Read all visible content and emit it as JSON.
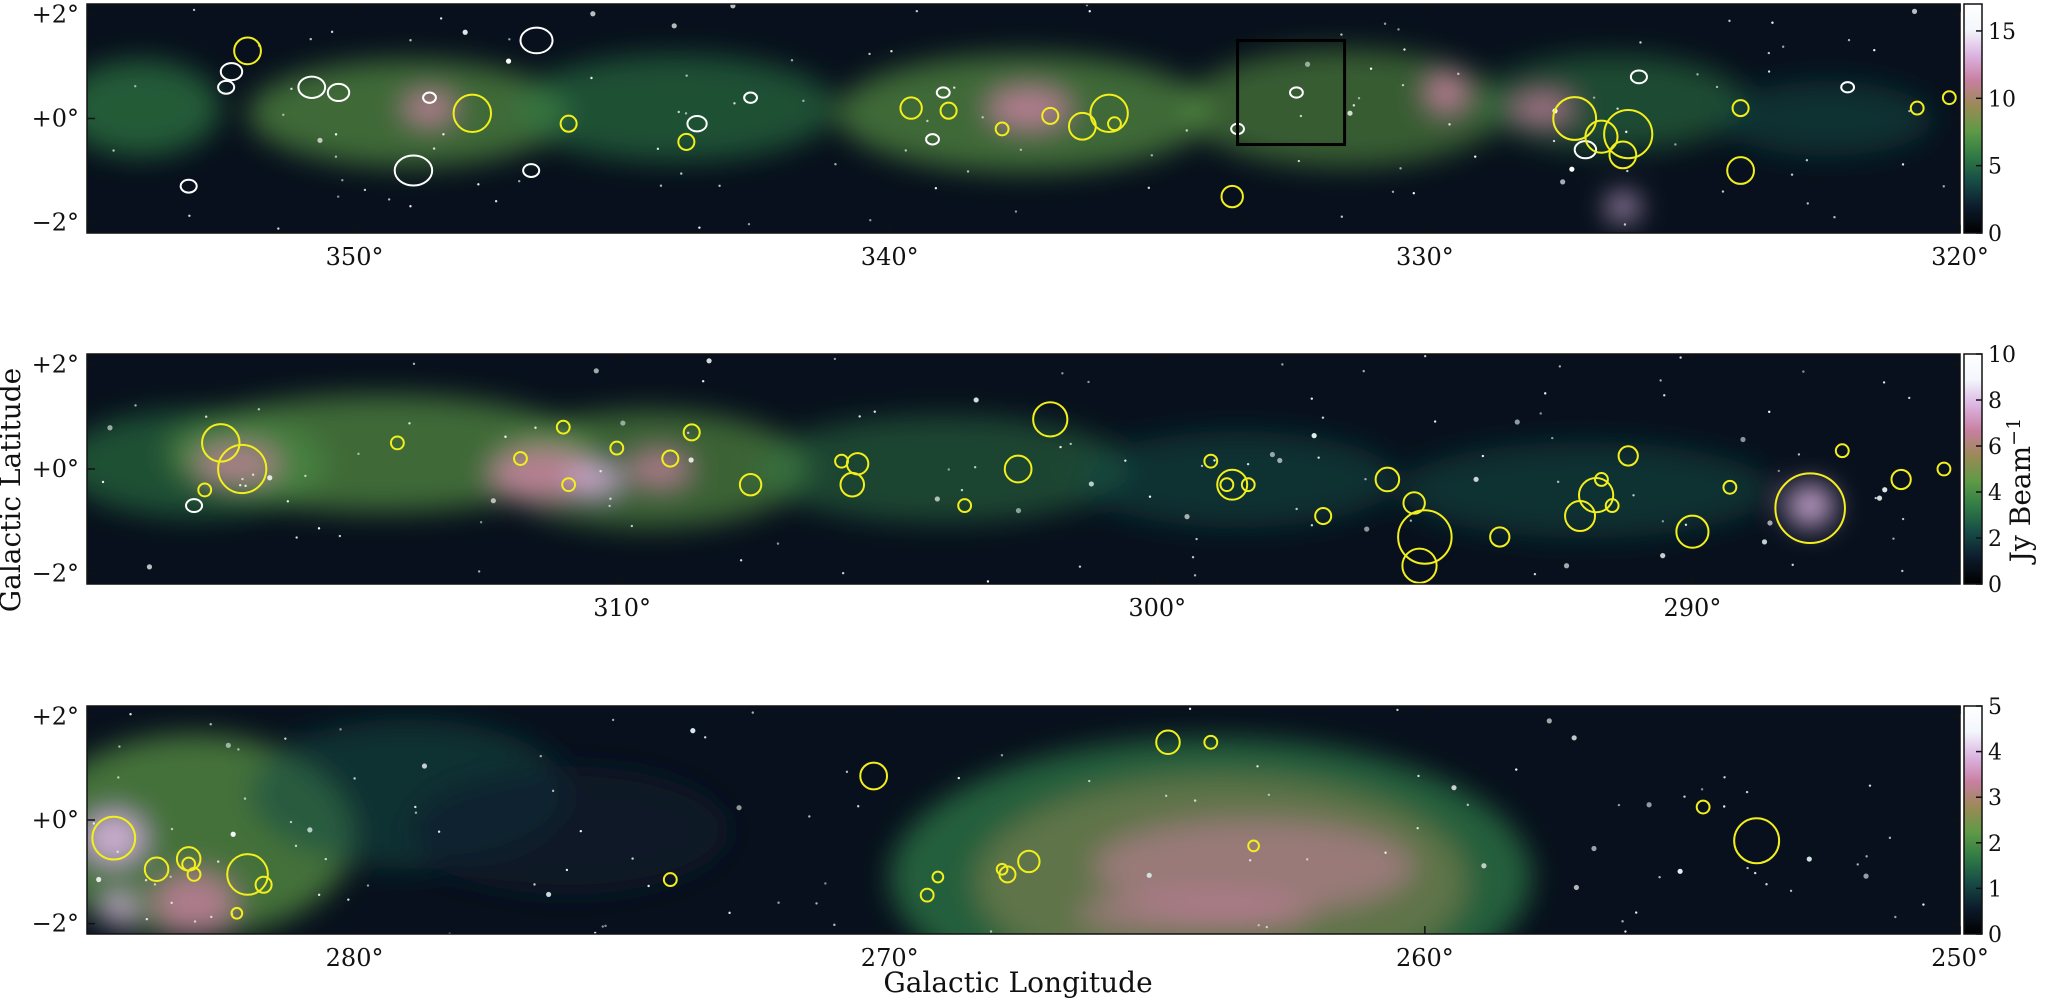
{
  "figure": {
    "xlabel": "Galactic Longitude",
    "ylabel": "Galactic Latitude",
    "colorbar_unit": "Jy Beam",
    "colorbar_unit_exp": "−1",
    "colormap": [
      "#000000",
      "#0c1a2c",
      "#164a46",
      "#2f7a45",
      "#5e9a46",
      "#9a8a55",
      "#c87fa0",
      "#dcb4e2",
      "#f3f7fb",
      "#ffffff"
    ],
    "marker_colors": {
      "sources": "#f2ef1d",
      "contours": "#ffffff",
      "box": "#000000"
    }
  },
  "panels": [
    {
      "id": "top",
      "lon_range": [
        355.0,
        320.0
      ],
      "lat_range": [
        -2.2,
        2.2
      ],
      "lon_ticks": [
        "350°",
        "340°",
        "330°",
        "320°"
      ],
      "lon_tick_values": [
        350,
        340,
        330,
        320
      ],
      "lat_ticks": [
        "+2°",
        "+0°",
        "−2°"
      ],
      "lat_tick_values": [
        2,
        0,
        -2
      ],
      "colorbar_max": 17,
      "colorbar_ticks": [
        "15",
        "10",
        "5",
        "0"
      ],
      "colorbar_tick_values": [
        15,
        10,
        5,
        0
      ],
      "sources": [
        {
          "l": 352.0,
          "b": 1.3,
          "r": 0.25
        },
        {
          "l": 347.8,
          "b": 0.1,
          "r": 0.35
        },
        {
          "l": 346.0,
          "b": -0.1,
          "r": 0.15
        },
        {
          "l": 343.8,
          "b": -0.45,
          "r": 0.15
        },
        {
          "l": 339.6,
          "b": 0.2,
          "r": 0.2
        },
        {
          "l": 338.9,
          "b": 0.15,
          "r": 0.15
        },
        {
          "l": 337.9,
          "b": -0.2,
          "r": 0.12
        },
        {
          "l": 337.0,
          "b": 0.05,
          "r": 0.15
        },
        {
          "l": 336.4,
          "b": -0.15,
          "r": 0.25
        },
        {
          "l": 335.9,
          "b": 0.1,
          "r": 0.35
        },
        {
          "l": 335.8,
          "b": -0.1,
          "r": 0.12
        },
        {
          "l": 333.6,
          "b": -1.5,
          "r": 0.2
        },
        {
          "l": 327.2,
          "b": 0.0,
          "r": 0.4
        },
        {
          "l": 326.7,
          "b": -0.35,
          "r": 0.3
        },
        {
          "l": 326.2,
          "b": -0.3,
          "r": 0.45
        },
        {
          "l": 326.3,
          "b": -0.7,
          "r": 0.25
        },
        {
          "l": 324.1,
          "b": 0.2,
          "r": 0.15
        },
        {
          "l": 324.1,
          "b": -1.0,
          "r": 0.25
        },
        {
          "l": 320.8,
          "b": 0.2,
          "r": 0.12
        },
        {
          "l": 320.2,
          "b": 0.4,
          "r": 0.12
        }
      ],
      "contours": [
        {
          "l": 352.3,
          "b": 0.9,
          "r": 0.2
        },
        {
          "l": 352.4,
          "b": 0.6,
          "r": 0.15
        },
        {
          "l": 350.8,
          "b": 0.6,
          "r": 0.25
        },
        {
          "l": 350.3,
          "b": 0.5,
          "r": 0.2
        },
        {
          "l": 348.9,
          "b": -1.0,
          "r": 0.35
        },
        {
          "l": 348.6,
          "b": 0.4,
          "r": 0.12
        },
        {
          "l": 346.6,
          "b": 1.5,
          "r": 0.3
        },
        {
          "l": 346.7,
          "b": -1.0,
          "r": 0.15
        },
        {
          "l": 343.6,
          "b": -0.1,
          "r": 0.18
        },
        {
          "l": 342.6,
          "b": 0.4,
          "r": 0.12
        },
        {
          "l": 339.0,
          "b": 0.5,
          "r": 0.12
        },
        {
          "l": 339.2,
          "b": -0.4,
          "r": 0.12
        },
        {
          "l": 332.4,
          "b": 0.5,
          "r": 0.12
        },
        {
          "l": 333.5,
          "b": -0.2,
          "r": 0.12
        },
        {
          "l": 327.0,
          "b": -0.6,
          "r": 0.2
        },
        {
          "l": 326.0,
          "b": 0.8,
          "r": 0.15
        },
        {
          "l": 322.1,
          "b": 0.6,
          "r": 0.12
        },
        {
          "l": 353.1,
          "b": -1.3,
          "r": 0.15
        }
      ],
      "box": {
        "l1": 333.5,
        "l2": 331.5,
        "b1": -0.5,
        "b2": 1.5
      },
      "emission": [
        {
          "l": 354.0,
          "b": 0.2,
          "rx": 1.5,
          "ry": 0.9,
          "c": "#2f7a45",
          "o": 0.7
        },
        {
          "l": 349.0,
          "b": 0.1,
          "rx": 3.0,
          "ry": 1.0,
          "c": "#5e9a46",
          "o": 0.65
        },
        {
          "l": 344.0,
          "b": 0.2,
          "rx": 3.0,
          "ry": 1.0,
          "c": "#2f7a45",
          "o": 0.6
        },
        {
          "l": 337.5,
          "b": 0.1,
          "rx": 3.5,
          "ry": 1.1,
          "c": "#5e9a46",
          "o": 0.65
        },
        {
          "l": 331.5,
          "b": 0.2,
          "rx": 3.0,
          "ry": 1.1,
          "c": "#5e9a46",
          "o": 0.55
        },
        {
          "l": 326.5,
          "b": 0.3,
          "rx": 2.5,
          "ry": 0.9,
          "c": "#2f7a45",
          "o": 0.55
        },
        {
          "l": 322.5,
          "b": 0.0,
          "rx": 2.0,
          "ry": 0.7,
          "c": "#164a46",
          "o": 0.55
        },
        {
          "l": 348.6,
          "b": 0.2,
          "rx": 0.5,
          "ry": 0.3,
          "c": "#c87fa0",
          "o": 0.9
        },
        {
          "l": 337.4,
          "b": 0.2,
          "rx": 0.8,
          "ry": 0.4,
          "c": "#c87fa0",
          "o": 0.85
        },
        {
          "l": 329.6,
          "b": 0.5,
          "rx": 0.4,
          "ry": 0.4,
          "c": "#c87fa0",
          "o": 0.9
        },
        {
          "l": 327.8,
          "b": 0.2,
          "rx": 0.6,
          "ry": 0.3,
          "c": "#c87fa0",
          "o": 0.8
        },
        {
          "l": 326.3,
          "b": -1.7,
          "rx": 0.3,
          "ry": 0.25,
          "c": "#dcb4e2",
          "o": 0.9
        }
      ]
    },
    {
      "id": "middle",
      "lon_range": [
        320.0,
        285.0
      ],
      "lat_range": [
        -2.2,
        2.2
      ],
      "lon_ticks": [
        "310°",
        "300°",
        "290°"
      ],
      "lon_tick_values": [
        310,
        300,
        290
      ],
      "lat_ticks": [
        "+2°",
        "+0°",
        "−2°"
      ],
      "lat_tick_values": [
        2,
        0,
        -2
      ],
      "colorbar_max": 10,
      "colorbar_ticks": [
        "10",
        "8",
        "6",
        "4",
        "2",
        "0"
      ],
      "colorbar_tick_values": [
        10,
        8,
        6,
        4,
        2,
        0
      ],
      "sources": [
        {
          "l": 317.5,
          "b": 0.5,
          "r": 0.35
        },
        {
          "l": 317.1,
          "b": 0.0,
          "r": 0.45
        },
        {
          "l": 317.8,
          "b": -0.4,
          "r": 0.12
        },
        {
          "l": 314.2,
          "b": 0.5,
          "r": 0.12
        },
        {
          "l": 311.9,
          "b": 0.2,
          "r": 0.12
        },
        {
          "l": 311.1,
          "b": 0.8,
          "r": 0.12
        },
        {
          "l": 311.0,
          "b": -0.3,
          "r": 0.12
        },
        {
          "l": 310.1,
          "b": 0.4,
          "r": 0.12
        },
        {
          "l": 309.1,
          "b": 0.2,
          "r": 0.15
        },
        {
          "l": 308.7,
          "b": 0.7,
          "r": 0.15
        },
        {
          "l": 307.6,
          "b": -0.3,
          "r": 0.2
        },
        {
          "l": 305.9,
          "b": 0.15,
          "r": 0.12
        },
        {
          "l": 305.6,
          "b": 0.1,
          "r": 0.2
        },
        {
          "l": 305.7,
          "b": -0.3,
          "r": 0.22
        },
        {
          "l": 303.6,
          "b": -0.7,
          "r": 0.12
        },
        {
          "l": 302.6,
          "b": 0.0,
          "r": 0.25
        },
        {
          "l": 302.0,
          "b": 0.95,
          "r": 0.32
        },
        {
          "l": 299.0,
          "b": 0.15,
          "r": 0.12
        },
        {
          "l": 298.6,
          "b": -0.3,
          "r": 0.28
        },
        {
          "l": 298.7,
          "b": -0.3,
          "r": 0.12
        },
        {
          "l": 298.3,
          "b": -0.3,
          "r": 0.12
        },
        {
          "l": 296.9,
          "b": -0.9,
          "r": 0.15
        },
        {
          "l": 295.7,
          "b": -0.2,
          "r": 0.22
        },
        {
          "l": 295.2,
          "b": -0.65,
          "r": 0.2
        },
        {
          "l": 295.0,
          "b": -1.3,
          "r": 0.5
        },
        {
          "l": 295.1,
          "b": -1.85,
          "r": 0.32
        },
        {
          "l": 293.6,
          "b": -1.3,
          "r": 0.18
        },
        {
          "l": 292.1,
          "b": -0.9,
          "r": 0.28
        },
        {
          "l": 291.8,
          "b": -0.5,
          "r": 0.32
        },
        {
          "l": 291.7,
          "b": -0.2,
          "r": 0.12
        },
        {
          "l": 291.5,
          "b": -0.7,
          "r": 0.12
        },
        {
          "l": 291.2,
          "b": 0.25,
          "r": 0.18
        },
        {
          "l": 290.0,
          "b": -1.2,
          "r": 0.3
        },
        {
          "l": 289.3,
          "b": -0.35,
          "r": 0.12
        },
        {
          "l": 287.8,
          "b": -0.75,
          "r": 0.65
        },
        {
          "l": 287.2,
          "b": 0.35,
          "r": 0.12
        },
        {
          "l": 286.1,
          "b": -0.2,
          "r": 0.18
        },
        {
          "l": 285.3,
          "b": 0.0,
          "r": 0.12
        }
      ],
      "contours": [
        {
          "l": 318.0,
          "b": -0.7,
          "r": 0.15
        }
      ],
      "emission": [
        {
          "l": 318.0,
          "b": 0.1,
          "rx": 2.5,
          "ry": 1.0,
          "c": "#2f7a45",
          "o": 0.6
        },
        {
          "l": 314.5,
          "b": 0.3,
          "rx": 4.0,
          "ry": 1.1,
          "c": "#5e9a46",
          "o": 0.65
        },
        {
          "l": 309.5,
          "b": 0.0,
          "rx": 3.0,
          "ry": 1.1,
          "c": "#5e9a46",
          "o": 0.6
        },
        {
          "l": 304.0,
          "b": 0.0,
          "rx": 3.5,
          "ry": 1.0,
          "c": "#2f7a45",
          "o": 0.5
        },
        {
          "l": 298.5,
          "b": -0.2,
          "rx": 3.0,
          "ry": 0.9,
          "c": "#164a46",
          "o": 0.55
        },
        {
          "l": 292.0,
          "b": -0.4,
          "rx": 3.5,
          "ry": 0.9,
          "c": "#164a46",
          "o": 0.55
        },
        {
          "l": 317.2,
          "b": 0.1,
          "rx": 0.8,
          "ry": 0.35,
          "c": "#c87fa0",
          "o": 0.8
        },
        {
          "l": 311.5,
          "b": -0.1,
          "rx": 1.0,
          "ry": 0.5,
          "c": "#c87fa0",
          "o": 0.85
        },
        {
          "l": 310.5,
          "b": -0.2,
          "rx": 0.5,
          "ry": 0.3,
          "c": "#dcb4e2",
          "o": 0.85
        },
        {
          "l": 309.3,
          "b": 0.0,
          "rx": 0.6,
          "ry": 0.35,
          "c": "#c87fa0",
          "o": 0.8
        },
        {
          "l": 287.8,
          "b": -0.7,
          "rx": 0.45,
          "ry": 0.4,
          "c": "#dcb4e2",
          "o": 0.9
        }
      ]
    },
    {
      "id": "bottom",
      "lon_range": [
        285.0,
        250.0
      ],
      "lat_range": [
        -2.2,
        2.2
      ],
      "lon_ticks": [
        "280°",
        "270°",
        "260°",
        "250°"
      ],
      "lon_tick_values": [
        280,
        270,
        260,
        250
      ],
      "lat_ticks": [
        "+2°",
        "+0°",
        "−2°"
      ],
      "lat_tick_values": [
        2,
        0,
        -2
      ],
      "colorbar_max": 5,
      "colorbar_ticks": [
        "5",
        "4",
        "3",
        "2",
        "1",
        "0"
      ],
      "colorbar_tick_values": [
        5,
        4,
        3,
        2,
        1,
        0
      ],
      "sources": [
        {
          "l": 284.5,
          "b": -0.35,
          "r": 0.4
        },
        {
          "l": 283.7,
          "b": -0.95,
          "r": 0.22
        },
        {
          "l": 283.1,
          "b": -0.75,
          "r": 0.22
        },
        {
          "l": 283.0,
          "b": -1.05,
          "r": 0.12
        },
        {
          "l": 283.1,
          "b": -0.85,
          "r": 0.12
        },
        {
          "l": 282.0,
          "b": -1.05,
          "r": 0.38
        },
        {
          "l": 281.7,
          "b": -1.25,
          "r": 0.15
        },
        {
          "l": 282.2,
          "b": -1.8,
          "r": 0.1
        },
        {
          "l": 274.1,
          "b": -1.15,
          "r": 0.12
        },
        {
          "l": 270.3,
          "b": 0.85,
          "r": 0.25
        },
        {
          "l": 269.3,
          "b": -1.45,
          "r": 0.12
        },
        {
          "l": 269.1,
          "b": -1.1,
          "r": 0.1
        },
        {
          "l": 267.9,
          "b": -0.95,
          "r": 0.1
        },
        {
          "l": 267.8,
          "b": -1.05,
          "r": 0.15
        },
        {
          "l": 267.4,
          "b": -0.8,
          "r": 0.2
        },
        {
          "l": 264.8,
          "b": 1.5,
          "r": 0.22
        },
        {
          "l": 264.0,
          "b": 1.5,
          "r": 0.12
        },
        {
          "l": 263.2,
          "b": -0.5,
          "r": 0.1
        },
        {
          "l": 254.8,
          "b": 0.25,
          "r": 0.12
        },
        {
          "l": 253.8,
          "b": -0.4,
          "r": 0.42
        }
      ],
      "contours": [],
      "emission": [
        {
          "l": 283.0,
          "b": -0.3,
          "rx": 3.0,
          "ry": 1.9,
          "c": "#5e9a46",
          "o": 0.7
        },
        {
          "l": 279.0,
          "b": 0.5,
          "rx": 3.0,
          "ry": 1.4,
          "c": "#164a46",
          "o": 0.55
        },
        {
          "l": 276.0,
          "b": -0.2,
          "rx": 3.0,
          "ry": 1.2,
          "c": "#0c1a2c",
          "o": 0.6
        },
        {
          "l": 264.0,
          "b": -1.1,
          "rx": 6.0,
          "ry": 2.6,
          "c": "#2f7a45",
          "o": 0.75
        },
        {
          "l": 263.8,
          "b": -1.2,
          "rx": 4.6,
          "ry": 2.0,
          "c": "#9a8a55",
          "o": 0.5
        },
        {
          "l": 263.2,
          "b": -0.9,
          "rx": 3.0,
          "ry": 0.9,
          "c": "#c87fa0",
          "o": 0.55
        },
        {
          "l": 264.3,
          "b": -1.8,
          "rx": 2.2,
          "ry": 0.35,
          "c": "#c87fa0",
          "o": 0.6
        },
        {
          "l": 284.5,
          "b": -0.35,
          "rx": 0.6,
          "ry": 0.5,
          "c": "#dcb4e2",
          "o": 0.9
        },
        {
          "l": 283.0,
          "b": -1.6,
          "rx": 0.8,
          "ry": 0.6,
          "c": "#c87fa0",
          "o": 0.8
        },
        {
          "l": 284.4,
          "b": -1.7,
          "rx": 0.3,
          "ry": 0.3,
          "c": "#dcb4e2",
          "o": 0.9
        }
      ]
    }
  ]
}
